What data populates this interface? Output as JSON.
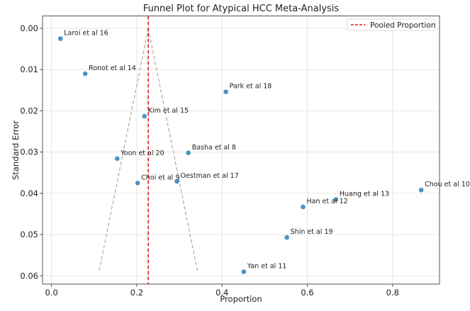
{
  "chart_data": {
    "type": "scatter",
    "title": "Funnel Plot for Atypical HCC Meta-Analysis",
    "xlabel": "Proportion",
    "ylabel": "Standard Error",
    "xlim": [
      -0.021,
      0.91
    ],
    "ylim": [
      0.062,
      -0.003
    ],
    "y_inverted": true,
    "grid": true,
    "legend_position": "top-right",
    "xticks": [
      "0.0",
      "0.2",
      "0.4",
      "0.6",
      "0.8"
    ],
    "xtick_values": [
      0,
      0.2,
      0.4,
      0.6,
      0.8
    ],
    "yticks": [
      "0.00",
      "0.01",
      "0.02",
      "0.03",
      "0.04",
      "0.05",
      "0.06"
    ],
    "ytick_values": [
      0,
      0.01,
      0.02,
      0.03,
      0.04,
      0.05,
      0.06
    ],
    "points": [
      {
        "label": "Laroi et al 16",
        "x": 0.021,
        "y": 0.0025
      },
      {
        "label": "Ronot et al 14",
        "x": 0.079,
        "y": 0.011
      },
      {
        "label": "Park et al 18",
        "x": 0.409,
        "y": 0.0154
      },
      {
        "label": "Kim et al 15",
        "x": 0.218,
        "y": 0.0213
      },
      {
        "label": "Basha et al 8",
        "x": 0.321,
        "y": 0.0302
      },
      {
        "label": "Yoon et al 20",
        "x": 0.154,
        "y": 0.0316
      },
      {
        "label": "Choi et al 9",
        "x": 0.202,
        "y": 0.0375
      },
      {
        "label": "Oestman et al 17",
        "x": 0.294,
        "y": 0.0371
      },
      {
        "label": "Chou et al 10",
        "x": 0.867,
        "y": 0.0392
      },
      {
        "label": "Huang et al 13",
        "x": 0.667,
        "y": 0.0415
      },
      {
        "label": "Han et al 12",
        "x": 0.59,
        "y": 0.0433
      },
      {
        "label": "Shin et al 19",
        "x": 0.552,
        "y": 0.0507
      },
      {
        "label": "Yan et al 11",
        "x": 0.451,
        "y": 0.059
      }
    ],
    "pooled": {
      "name": "Pooled Proportion",
      "x": 0.227
    },
    "funnel": {
      "se_max": 0.059,
      "z": 1.96
    },
    "colors": {
      "points": "#1f77b4",
      "pooled": "#e41a1c",
      "funnel": "#aaaaaa"
    }
  }
}
